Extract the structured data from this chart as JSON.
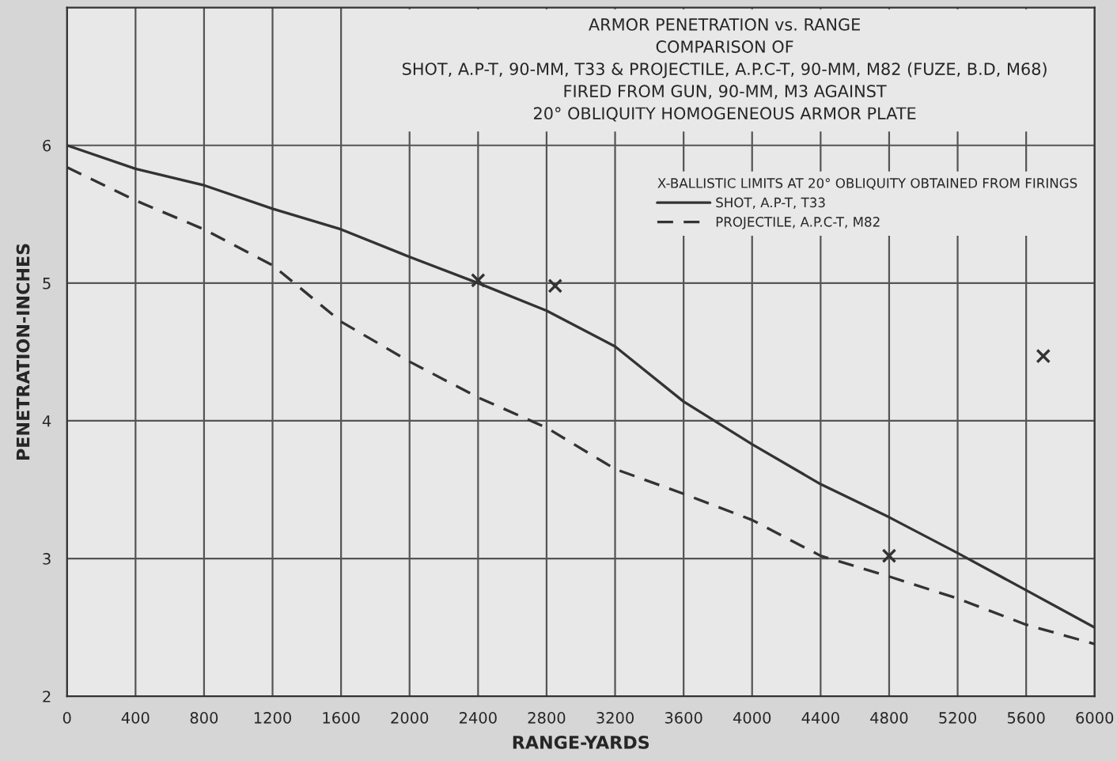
{
  "chart_data": {
    "type": "line",
    "title": "ARMOR PENETRATION vs. RANGE\nCOMPARISON OF\nSHOT, A.P-T, 90-MM, T33 & PROJECTILE, A.P.C-T, 90-MM, M82 (FUZE, B.D, M68)\nFIRED FROM GUN, 90-MM, M3 AGAINST\n20° OBLIQUITY HOMOGENEOUS ARMOR PLATE",
    "xlabel": "RANGE-YARDS",
    "ylabel": "PENETRATION-INCHES",
    "legend_title": "X-BALLISTIC LIMITS AT 20° OBLIQUITY OBTAINED FROM FIRINGS",
    "x": [
      0,
      400,
      800,
      1200,
      1600,
      2000,
      2400,
      2800,
      3200,
      3600,
      4000,
      4400,
      4800,
      5200,
      5600,
      6000
    ],
    "series": [
      {
        "name": "SHOT, A.P-T, T33",
        "color": "#333333",
        "line_style": "solid",
        "values": [
          6.0,
          5.83,
          5.71,
          5.54,
          5.39,
          5.19,
          5.0,
          4.8,
          4.54,
          4.14,
          3.83,
          3.54,
          3.3,
          3.04,
          2.77,
          2.5
        ]
      },
      {
        "name": "PROJECTILE, A.P.C-T, M82",
        "color": "#333333",
        "line_style": "dashed",
        "values": [
          5.84,
          5.6,
          5.39,
          5.13,
          4.72,
          4.43,
          4.17,
          3.95,
          3.65,
          3.47,
          3.28,
          3.02,
          2.87,
          2.71,
          2.52,
          2.38
        ]
      },
      {
        "type": "scatter",
        "color": "#333333",
        "marker": "cross",
        "x": [
          2400,
          2850,
          4800,
          5700
        ],
        "values": [
          5.02,
          4.98,
          3.02,
          4.47
        ]
      }
    ],
    "xlim": [
      0,
      6000
    ],
    "ylim": [
      2,
      7
    ],
    "xticks": [
      0,
      400,
      800,
      1200,
      1600,
      2000,
      2400,
      2800,
      3200,
      3600,
      4000,
      4400,
      4800,
      5200,
      5600,
      6000
    ],
    "yticks": [
      2,
      3,
      4,
      5,
      6
    ],
    "grid": true,
    "legend": "top right"
  }
}
